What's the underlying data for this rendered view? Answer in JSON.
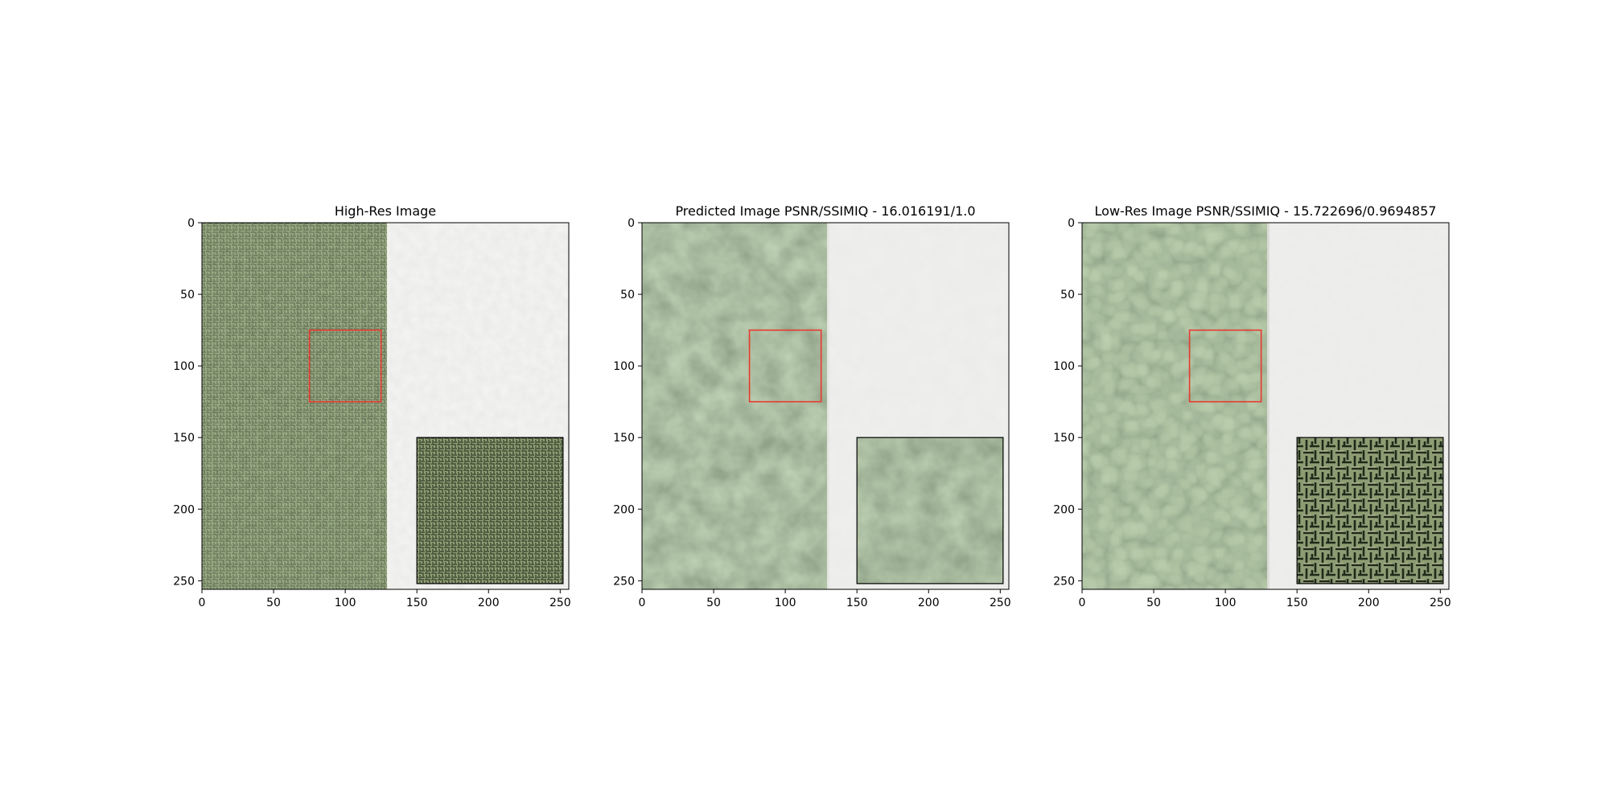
{
  "chart_data": [
    {
      "type": "image",
      "title": "High-Res Image",
      "xlim": [
        0,
        256
      ],
      "ylim": [
        256,
        0
      ],
      "xticks": [
        0,
        50,
        100,
        150,
        200,
        250
      ],
      "yticks": [
        0,
        50,
        100,
        150,
        200,
        250
      ],
      "roi": {
        "x0": 75,
        "y0": 75,
        "x1": 125,
        "y1": 125,
        "color": "#e8392f"
      },
      "inset": {
        "x0": 150,
        "y0": 150,
        "x1": 252,
        "y1": 252
      },
      "content": "texture-sharp"
    },
    {
      "type": "image",
      "title": "Predicted Image PSNR/SSIMIQ - 16.016191/1.0",
      "xlim": [
        0,
        256
      ],
      "ylim": [
        256,
        0
      ],
      "xticks": [
        0,
        50,
        100,
        150,
        200,
        250
      ],
      "yticks": [
        0,
        50,
        100,
        150,
        200,
        250
      ],
      "roi": {
        "x0": 75,
        "y0": 75,
        "x1": 125,
        "y1": 125,
        "color": "#e8392f"
      },
      "inset": {
        "x0": 150,
        "y0": 150,
        "x1": 252,
        "y1": 252
      },
      "content": "texture-smooth"
    },
    {
      "type": "image",
      "title": "Low-Res Image PSNR/SSIMIQ - 15.722696/0.9694857",
      "xlim": [
        0,
        256
      ],
      "ylim": [
        256,
        0
      ],
      "xticks": [
        0,
        50,
        100,
        150,
        200,
        250
      ],
      "yticks": [
        0,
        50,
        100,
        150,
        200,
        250
      ],
      "roi": {
        "x0": 75,
        "y0": 75,
        "x1": 125,
        "y1": 125,
        "color": "#e8392f"
      },
      "inset": {
        "x0": 150,
        "y0": 150,
        "x1": 252,
        "y1": 252
      },
      "content": "texture-pixelated"
    }
  ],
  "palette": {
    "foliage_dark": "#4f6640",
    "foliage_mid": "#7a8f64",
    "foliage_light": "#a7b08a",
    "stone_light": "#e9e9e7",
    "stone_shadow": "#55524c",
    "roi_color": "#e8392f"
  }
}
